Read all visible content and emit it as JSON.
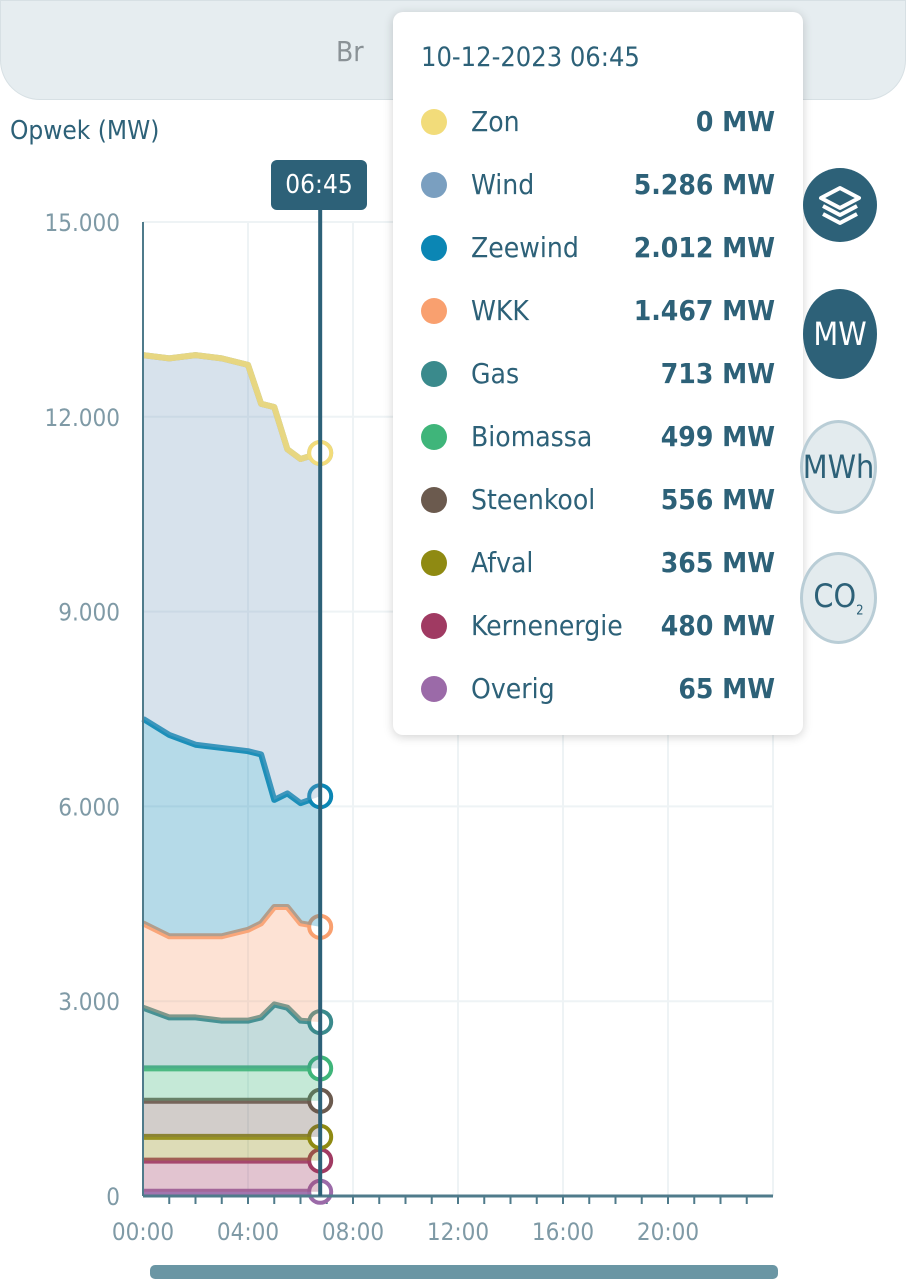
{
  "header": {
    "title_partial": "Br"
  },
  "chart_data": {
    "type": "area",
    "stacked": true,
    "ylabel": "Opwek (MW)",
    "ylim": [
      0,
      15000
    ],
    "yticks": [
      "0",
      "3.000",
      "6.000",
      "9.000",
      "12.000",
      "15.000"
    ],
    "ytick_values": [
      0,
      3000,
      6000,
      9000,
      12000,
      15000
    ],
    "xlim_hours": [
      0,
      24
    ],
    "xticks": [
      "00:00",
      "04:00",
      "08:00",
      "12:00",
      "16:00",
      "20:00"
    ],
    "xtick_hours": [
      0,
      4,
      8,
      12,
      16,
      20
    ],
    "x": [
      "00:00",
      "01:00",
      "02:00",
      "03:00",
      "04:00",
      "04:30",
      "05:00",
      "05:30",
      "06:00",
      "06:45"
    ],
    "grid": true,
    "cursor": "06:45",
    "series": [
      {
        "name": "Overig",
        "color": "#9b6aa8",
        "values": [
          65,
          65,
          65,
          65,
          65,
          65,
          65,
          65,
          65,
          65
        ]
      },
      {
        "name": "Kernenergie",
        "color": "#a03a62",
        "values": [
          480,
          480,
          480,
          480,
          480,
          480,
          480,
          480,
          480,
          480
        ]
      },
      {
        "name": "Afval",
        "color": "#8f8a12",
        "values": [
          365,
          365,
          365,
          365,
          365,
          365,
          365,
          365,
          365,
          365
        ]
      },
      {
        "name": "Steenkool",
        "color": "#6b5a4e",
        "values": [
          556,
          556,
          556,
          556,
          556,
          556,
          556,
          556,
          556,
          556
        ]
      },
      {
        "name": "Biomassa",
        "color": "#3fb57a",
        "values": [
          499,
          499,
          499,
          499,
          499,
          499,
          499,
          499,
          499,
          499
        ]
      },
      {
        "name": "Gas",
        "color": "#3a8a8c",
        "values": [
          935,
          785,
          785,
          735,
          735,
          785,
          985,
          935,
          735,
          713
        ]
      },
      {
        "name": "WKK",
        "color": "#f9a06f",
        "values": [
          1300,
          1250,
          1250,
          1300,
          1400,
          1450,
          1500,
          1550,
          1500,
          1467
        ]
      },
      {
        "name": "Zeewind",
        "color": "#0b86b4",
        "values": [
          3150,
          3100,
          2950,
          2900,
          2750,
          2600,
          1650,
          1750,
          1850,
          2012
        ]
      },
      {
        "name": "Wind",
        "color": "#7a9fc0",
        "values": [
          5600,
          5800,
          6000,
          6000,
          5950,
          5400,
          6050,
          5300,
          5300,
          5286
        ]
      },
      {
        "name": "Zon",
        "color": "#f2dc7a",
        "values": [
          0,
          0,
          0,
          0,
          0,
          0,
          0,
          0,
          0,
          0
        ]
      }
    ]
  },
  "tooltip": {
    "title": "10-12-2023 06:45",
    "rows": [
      {
        "name": "Zon",
        "value": "0 MW",
        "color": "#f2dc7a"
      },
      {
        "name": "Wind",
        "value": "5.286 MW",
        "color": "#7a9fc0"
      },
      {
        "name": "Zeewind",
        "value": "2.012 MW",
        "color": "#0b86b4"
      },
      {
        "name": "WKK",
        "value": "1.467 MW",
        "color": "#f9a06f"
      },
      {
        "name": "Gas",
        "value": "713 MW",
        "color": "#3a8a8c"
      },
      {
        "name": "Biomassa",
        "value": "499 MW",
        "color": "#3fb57a"
      },
      {
        "name": "Steenkool",
        "value": "556 MW",
        "color": "#6b5a4e"
      },
      {
        "name": "Afval",
        "value": "365 MW",
        "color": "#8f8a12"
      },
      {
        "name": "Kernenergie",
        "value": "480 MW",
        "color": "#a03a62"
      },
      {
        "name": "Overig",
        "value": "65 MW",
        "color": "#9b6aa8"
      }
    ]
  },
  "side_buttons": {
    "layers": "layers-icon",
    "mw": "MW",
    "mwh": "MWh",
    "co2": "CO",
    "co2_sub": "2"
  },
  "cursor_label": "06:45"
}
